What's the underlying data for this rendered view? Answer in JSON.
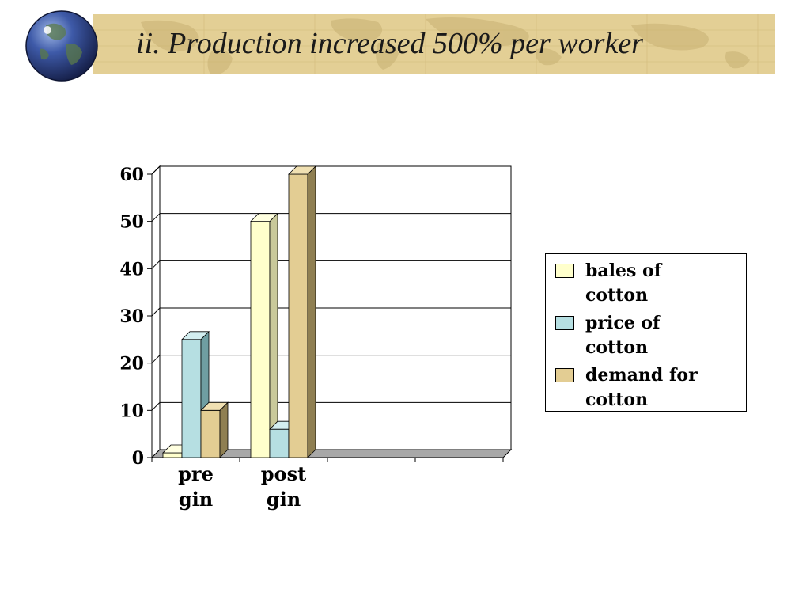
{
  "slide": {
    "title": "ii.  Production increased 500% per worker"
  },
  "icons": {
    "globe": "globe-icon",
    "map": "world-map-icon"
  },
  "colors": {
    "banner": "#e3cf95",
    "bales": "#ffffcc",
    "price": "#b6dfe2",
    "demand": "#e3cd93"
  },
  "chart_data": {
    "type": "bar",
    "categories": [
      "pre gin",
      "post gin",
      "",
      ""
    ],
    "category_lines": [
      [
        "pre",
        "gin"
      ],
      [
        "post",
        "gin"
      ]
    ],
    "series": [
      {
        "name": "bales of cotton",
        "values": [
          1,
          50,
          0,
          0
        ]
      },
      {
        "name": "price of cotton",
        "values": [
          25,
          6,
          0,
          0
        ]
      },
      {
        "name": "demand for cotton",
        "values": [
          10,
          60,
          0,
          0
        ]
      }
    ],
    "legend_lines": [
      [
        "bales of",
        "cotton"
      ],
      [
        "price of",
        "cotton"
      ],
      [
        "demand for",
        "cotton"
      ]
    ],
    "y_ticks": [
      0,
      10,
      20,
      30,
      40,
      50,
      60
    ],
    "ylim": [
      0,
      60
    ],
    "grid": true,
    "legend_position": "right"
  }
}
